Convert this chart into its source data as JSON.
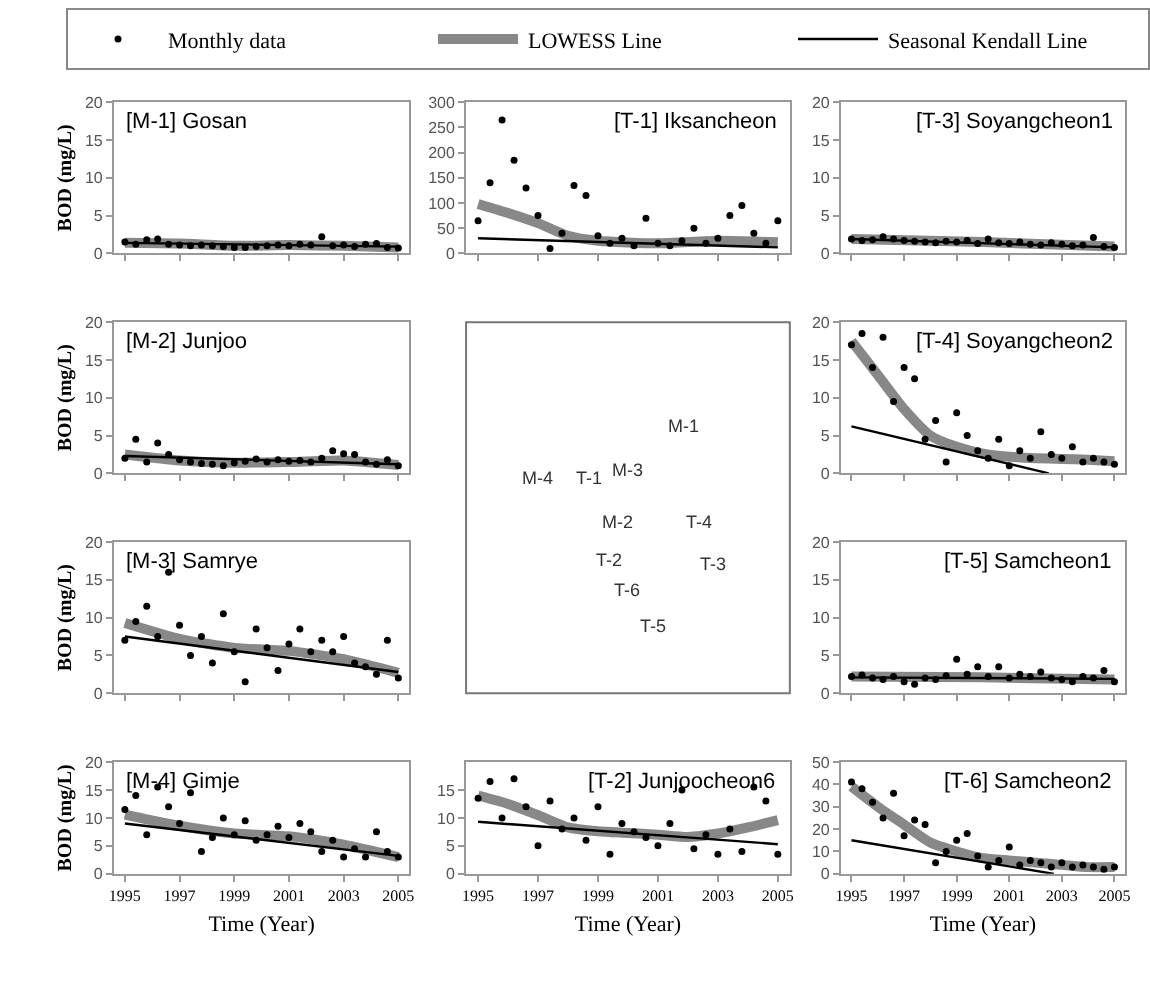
{
  "chart_data": [
    {
      "type": "scatter",
      "title": "[M-1] Gosan",
      "ylabel": "BOD (mg/L)",
      "legend": "top",
      "tick_labels": "y",
      "xlim": [
        1994.6,
        2005.4
      ],
      "xticks": [
        1995,
        1997,
        1999,
        2001,
        2003,
        2005
      ],
      "ylim": [
        0,
        20
      ],
      "yticks": [
        0,
        5,
        10,
        15,
        20
      ],
      "x": [
        1995,
        1995.4,
        1995.8,
        1996.2,
        1996.6,
        1997,
        1997.4,
        1997.8,
        1998.2,
        1998.6,
        1999,
        1999.4,
        1999.8,
        2000.2,
        2000.6,
        2001,
        2001.4,
        2001.8,
        2002.2,
        2002.6,
        2003,
        2003.4,
        2003.8,
        2004.2,
        2004.6,
        2005
      ],
      "series": [
        {
          "name": "Monthly data",
          "type": "scatter",
          "marker": "circle",
          "color": "#000000",
          "values": [
            1.5,
            1.2,
            1.8,
            1.9,
            1.2,
            1.1,
            1.0,
            1.1,
            1.0,
            0.9,
            0.8,
            0.8,
            0.9,
            1.0,
            1.1,
            1.0,
            1.2,
            1.1,
            2.2,
            1.0,
            1.1,
            0.9,
            1.2,
            1.3,
            0.8,
            0.7
          ]
        },
        {
          "name": "LOWESS Line",
          "type": "line",
          "color": "#888888",
          "x": [
            1995,
            1997,
            1999,
            2001,
            2003,
            2005
          ],
          "values": [
            1.4,
            1.3,
            1.0,
            1.1,
            1.0,
            0.8
          ]
        },
        {
          "name": "Seasonal Kendall Line",
          "type": "line",
          "color": "#000000",
          "x": [
            1995,
            2005
          ],
          "values": [
            1.4,
            0.9
          ]
        }
      ]
    },
    {
      "type": "scatter",
      "title": "[T-1] Iksancheon",
      "tick_labels": "y",
      "xlim": [
        1994.6,
        2005.4
      ],
      "xticks": [
        1995,
        1997,
        1999,
        2001,
        2003,
        2005
      ],
      "ylim": [
        0,
        300
      ],
      "yticks": [
        0,
        50,
        100,
        150,
        200,
        250,
        300
      ],
      "x": [
        1995,
        1995.4,
        1995.8,
        1996.2,
        1996.6,
        1997,
        1997.4,
        1997.8,
        1998.2,
        1998.6,
        1999,
        1999.4,
        1999.8,
        2000.2,
        2000.6,
        2001,
        2001.4,
        2001.8,
        2002.2,
        2002.6,
        2003,
        2003.4,
        2003.8,
        2004.2,
        2004.6,
        2005
      ],
      "series": [
        {
          "type": "scatter",
          "color": "#000000",
          "marker": "circle",
          "values": [
            65,
            140,
            265,
            185,
            130,
            75,
            10,
            40,
            135,
            115,
            35,
            20,
            30,
            15,
            70,
            20,
            15,
            25,
            50,
            20,
            30,
            75,
            95,
            40,
            20,
            65
          ]
        },
        {
          "type": "line",
          "color": "#888888",
          "x": [
            1995,
            1996,
            1997,
            1998,
            1999,
            2001,
            2003,
            2005
          ],
          "values": [
            98,
            80,
            60,
            35,
            25,
            20,
            25,
            22
          ]
        },
        {
          "type": "line",
          "color": "#000000",
          "x": [
            1995,
            2005
          ],
          "values": [
            30,
            12
          ]
        }
      ]
    },
    {
      "type": "scatter",
      "title": "[T-3] Soyangcheon1",
      "tick_labels": "y",
      "xlim": [
        1994.6,
        2005.4
      ],
      "xticks": [
        1995,
        1997,
        1999,
        2001,
        2003,
        2005
      ],
      "ylim": [
        0,
        20
      ],
      "yticks": [
        0,
        5,
        10,
        15,
        20
      ],
      "x": [
        1995,
        1995.4,
        1995.8,
        1996.2,
        1996.6,
        1997,
        1997.4,
        1997.8,
        1998.2,
        1998.6,
        1999,
        1999.4,
        1999.8,
        2000.2,
        2000.6,
        2001,
        2001.4,
        2001.8,
        2002.2,
        2002.6,
        2003,
        2003.4,
        2003.8,
        2004.2,
        2004.6,
        2005
      ],
      "series": [
        {
          "type": "scatter",
          "color": "#000000",
          "marker": "circle",
          "values": [
            1.9,
            1.7,
            1.8,
            2.2,
            1.9,
            1.7,
            1.6,
            1.5,
            1.4,
            1.6,
            1.5,
            1.7,
            1.3,
            1.9,
            1.4,
            1.3,
            1.5,
            1.2,
            1.1,
            1.4,
            1.2,
            1.0,
            1.1,
            2.1,
            0.9,
            0.8
          ]
        },
        {
          "type": "line",
          "color": "#888888",
          "x": [
            1995,
            2000,
            2005
          ],
          "values": [
            1.9,
            1.5,
            0.9
          ]
        },
        {
          "type": "line",
          "color": "#000000",
          "x": [
            1995,
            2005
          ],
          "values": [
            1.9,
            0.8
          ]
        }
      ]
    },
    {
      "type": "scatter",
      "title": "[M-2] Junjoo",
      "ylabel": "BOD (mg/L)",
      "tick_labels": "y",
      "xlim": [
        1994.6,
        2005.4
      ],
      "xticks": [
        1995,
        1997,
        1999,
        2001,
        2003,
        2005
      ],
      "ylim": [
        0,
        20
      ],
      "yticks": [
        0,
        5,
        10,
        15,
        20
      ],
      "x": [
        1995,
        1995.4,
        1995.8,
        1996.2,
        1996.6,
        1997,
        1997.4,
        1997.8,
        1998.2,
        1998.6,
        1999,
        1999.4,
        1999.8,
        2000.2,
        2000.6,
        2001,
        2001.4,
        2001.8,
        2002.2,
        2002.6,
        2003,
        2003.4,
        2003.8,
        2004.2,
        2004.6,
        2005
      ],
      "series": [
        {
          "type": "scatter",
          "color": "#000000",
          "marker": "circle",
          "values": [
            2.0,
            4.5,
            1.5,
            4.0,
            2.5,
            1.8,
            1.5,
            1.3,
            1.2,
            1.0,
            1.4,
            1.6,
            1.9,
            1.5,
            1.8,
            1.6,
            1.7,
            1.5,
            2.0,
            3.0,
            2.6,
            2.5,
            1.5,
            1.2,
            1.8,
            1.0
          ]
        },
        {
          "type": "line",
          "color": "#888888",
          "x": [
            1995,
            1997,
            1999,
            2001,
            2003,
            2005
          ],
          "values": [
            2.5,
            1.7,
            1.4,
            1.5,
            1.7,
            1.1
          ]
        },
        {
          "type": "line",
          "color": "#000000",
          "x": [
            1995,
            2005
          ],
          "values": [
            2.3,
            1.2
          ]
        }
      ]
    },
    {
      "type": "other",
      "annotations": [
        "M-1",
        "M-2",
        "M-3",
        "M-4",
        "T-1",
        "T-2",
        "T-3",
        "T-4",
        "T-5",
        "T-6"
      ]
    },
    {
      "type": "scatter",
      "title": "[T-4] Soyangcheon2",
      "tick_labels": "y",
      "xlim": [
        1994.6,
        2005.4
      ],
      "xticks": [
        1995,
        1997,
        1999,
        2001,
        2003,
        2005
      ],
      "ylim": [
        0,
        20
      ],
      "yticks": [
        0,
        5,
        10,
        15,
        20
      ],
      "x": [
        1995,
        1995.4,
        1995.8,
        1996.2,
        1996.6,
        1997,
        1997.4,
        1997.8,
        1998.2,
        1998.6,
        1999,
        1999.4,
        1999.8,
        2000.2,
        2000.6,
        2001,
        2001.4,
        2001.8,
        2002.2,
        2002.6,
        2003,
        2003.4,
        2003.8,
        2004.2,
        2004.6,
        2005
      ],
      "series": [
        {
          "type": "scatter",
          "color": "#000000",
          "marker": "circle",
          "values": [
            17,
            18.5,
            14,
            18,
            9.5,
            14,
            12.5,
            4.5,
            7,
            1.5,
            8,
            5,
            3,
            2,
            4.5,
            1,
            3,
            2,
            5.5,
            2.5,
            2,
            3.5,
            1.5,
            2,
            1.5,
            1.2
          ]
        },
        {
          "type": "line",
          "color": "#888888",
          "x": [
            1995,
            1996,
            1997,
            1998,
            1999,
            2000,
            2001,
            2002,
            2003,
            2004,
            2005
          ],
          "values": [
            17.5,
            13,
            8.5,
            5,
            3.5,
            2.6,
            2.2,
            2,
            1.9,
            1.8,
            1.6
          ]
        },
        {
          "type": "line",
          "color": "#000000",
          "x": [
            1995,
            2002.5
          ],
          "values": [
            6.2,
            0
          ]
        }
      ]
    },
    {
      "type": "scatter",
      "title": "[M-3] Samrye",
      "ylabel": "BOD (mg/L)",
      "tick_labels": "y",
      "xlim": [
        1994.6,
        2005.4
      ],
      "xticks": [
        1995,
        1997,
        1999,
        2001,
        2003,
        2005
      ],
      "ylim": [
        0,
        20
      ],
      "yticks": [
        0,
        5,
        10,
        15,
        20
      ],
      "x": [
        1995,
        1995.4,
        1995.8,
        1996.2,
        1996.6,
        1997,
        1997.4,
        1997.8,
        1998.2,
        1998.6,
        1999,
        1999.4,
        1999.8,
        2000.2,
        2000.6,
        2001,
        2001.4,
        2001.8,
        2002.2,
        2002.6,
        2003,
        2003.4,
        2003.8,
        2004.2,
        2004.6,
        2005
      ],
      "series": [
        {
          "type": "scatter",
          "color": "#000000",
          "marker": "circle",
          "values": [
            7,
            9.5,
            11.5,
            7.5,
            16,
            9,
            5,
            7.5,
            4,
            10.5,
            5.5,
            1.5,
            8.5,
            6,
            3,
            6.5,
            8.5,
            5.5,
            7,
            5.5,
            7.5,
            4,
            3.5,
            2.5,
            7,
            2
          ]
        },
        {
          "type": "line",
          "color": "#888888",
          "x": [
            1995,
            1997,
            1999,
            2001,
            2003,
            2005
          ],
          "values": [
            9.3,
            7.2,
            6.0,
            5.6,
            4.5,
            2.7
          ]
        },
        {
          "type": "line",
          "color": "#000000",
          "x": [
            1995,
            2005
          ],
          "values": [
            7.5,
            2.8
          ]
        }
      ]
    },
    {
      "type": "scatter",
      "title": "[T-5] Samcheon1",
      "tick_labels": "y",
      "xlim": [
        1994.6,
        2005.4
      ],
      "xticks": [
        1995,
        1997,
        1999,
        2001,
        2003,
        2005
      ],
      "ylim": [
        0,
        20
      ],
      "yticks": [
        0,
        5,
        10,
        15,
        20
      ],
      "x": [
        1995,
        1995.4,
        1995.8,
        1996.2,
        1996.6,
        1997,
        1997.4,
        1997.8,
        1998.2,
        1998.6,
        1999,
        1999.4,
        1999.8,
        2000.2,
        2000.6,
        2001,
        2001.4,
        2001.8,
        2002.2,
        2002.6,
        2003,
        2003.4,
        2003.8,
        2004.2,
        2004.6,
        2005
      ],
      "series": [
        {
          "type": "scatter",
          "color": "#000000",
          "marker": "circle",
          "values": [
            2.2,
            2.4,
            2,
            1.8,
            2.2,
            1.5,
            1.2,
            2,
            1.8,
            2.3,
            4.5,
            2.5,
            3.5,
            2.2,
            3.5,
            2,
            2.5,
            2.2,
            2.8,
            2,
            1.8,
            1.5,
            2.2,
            2,
            3,
            1.5
          ]
        },
        {
          "type": "line",
          "color": "#888888",
          "x": [
            1995,
            2000,
            2005
          ],
          "values": [
            2.2,
            2.1,
            1.8
          ]
        },
        {
          "type": "line",
          "color": "#000000",
          "x": [
            1995,
            2005
          ],
          "values": [
            2.1,
            1.9
          ]
        }
      ]
    },
    {
      "type": "scatter",
      "title": "[M-4] Gimje",
      "ylabel": "BOD (mg/L)",
      "xlabel": "Time (Year)",
      "xlim": [
        1994.6,
        2005.4
      ],
      "xticks": [
        1995,
        1997,
        1999,
        2001,
        2003,
        2005
      ],
      "ylim": [
        0,
        20
      ],
      "yticks": [
        0,
        5,
        10,
        15,
        20
      ],
      "x": [
        1995,
        1995.4,
        1995.8,
        1996.2,
        1996.6,
        1997,
        1997.4,
        1997.8,
        1998.2,
        1998.6,
        1999,
        1999.4,
        1999.8,
        2000.2,
        2000.6,
        2001,
        2001.4,
        2001.8,
        2002.2,
        2002.6,
        2003,
        2003.4,
        2003.8,
        2004.2,
        2004.6,
        2005
      ],
      "series": [
        {
          "type": "scatter",
          "color": "#000000",
          "marker": "circle",
          "values": [
            11.5,
            14,
            7,
            15.5,
            12,
            9,
            14.5,
            4,
            6.5,
            10,
            7,
            9.5,
            6,
            7,
            8.5,
            6.5,
            9,
            7.5,
            4,
            6,
            3,
            4.5,
            3,
            7.5,
            4,
            3
          ]
        },
        {
          "type": "line",
          "color": "#888888",
          "x": [
            1995,
            1997,
            1999,
            2001,
            2003,
            2005
          ],
          "values": [
            10.6,
            8.6,
            7.2,
            6.7,
            5.2,
            3.0
          ]
        },
        {
          "type": "line",
          "color": "#000000",
          "x": [
            1995,
            2005
          ],
          "values": [
            9,
            3.2
          ]
        }
      ]
    },
    {
      "type": "scatter",
      "title": "[T-2] Junjoocheon6",
      "xlabel": "Time (Year)",
      "xlim": [
        1994.6,
        2005.4
      ],
      "xticks": [
        1995,
        1997,
        1999,
        2001,
        2003,
        2005
      ],
      "ylim": [
        0,
        20
      ],
      "yticks": [
        0,
        5,
        10,
        15
      ],
      "x": [
        1995,
        1995.4,
        1995.8,
        1996.2,
        1996.6,
        1997,
        1997.4,
        1997.8,
        1998.2,
        1998.6,
        1999,
        1999.4,
        1999.8,
        2000.2,
        2000.6,
        2001,
        2001.4,
        2001.8,
        2002.2,
        2002.6,
        2003,
        2003.4,
        2003.8,
        2004.2,
        2004.6,
        2005
      ],
      "series": [
        {
          "type": "scatter",
          "color": "#000000",
          "marker": "circle",
          "values": [
            13.5,
            16.5,
            10,
            17,
            12,
            5,
            13,
            8,
            10,
            6,
            12,
            3.5,
            9,
            7.5,
            6.5,
            5,
            9,
            15,
            4.5,
            7,
            3.5,
            8,
            4,
            15.5,
            13,
            3.5
          ]
        },
        {
          "type": "line",
          "color": "#888888",
          "x": [
            1995,
            1996,
            1997,
            1998,
            1999,
            2000,
            2001,
            2002,
            2003,
            2004,
            2005
          ],
          "values": [
            14,
            12.5,
            10.5,
            8.3,
            7.6,
            7.3,
            7.0,
            6.6,
            7.2,
            8.3,
            9.6
          ]
        },
        {
          "type": "line",
          "color": "#000000",
          "x": [
            1995,
            2005
          ],
          "values": [
            9.3,
            5.3
          ]
        }
      ]
    },
    {
      "type": "scatter",
      "title": "[T-6] Samcheon2",
      "xlabel": "Time (Year)",
      "xlim": [
        1994.6,
        2005.4
      ],
      "xticks": [
        1995,
        1997,
        1999,
        2001,
        2003,
        2005
      ],
      "ylim": [
        0,
        50
      ],
      "yticks": [
        0,
        10,
        20,
        30,
        40,
        50
      ],
      "x": [
        1995,
        1995.4,
        1995.8,
        1996.2,
        1996.6,
        1997,
        1997.4,
        1997.8,
        1998.2,
        1998.6,
        1999,
        1999.4,
        1999.8,
        2000.2,
        2000.6,
        2001,
        2001.4,
        2001.8,
        2002.2,
        2002.6,
        2003,
        2003.4,
        2003.8,
        2004.2,
        2004.6,
        2005
      ],
      "series": [
        {
          "type": "scatter",
          "color": "#000000",
          "marker": "circle",
          "values": [
            41,
            38,
            32,
            25,
            36,
            17,
            24,
            22,
            5,
            10,
            15,
            18,
            8,
            3,
            6,
            12,
            4,
            6,
            5,
            3,
            5,
            3,
            4,
            3,
            2,
            3
          ]
        },
        {
          "type": "line",
          "color": "#888888",
          "x": [
            1995,
            1996,
            1997,
            1998,
            1999,
            2000,
            2001,
            2002,
            2003,
            2004,
            2005
          ],
          "values": [
            39,
            30,
            22,
            14,
            10,
            7,
            6,
            5,
            4,
            3,
            3
          ]
        },
        {
          "type": "line",
          "color": "#000000",
          "x": [
            1995,
            2002.7
          ],
          "values": [
            15,
            0
          ]
        }
      ]
    }
  ]
}
